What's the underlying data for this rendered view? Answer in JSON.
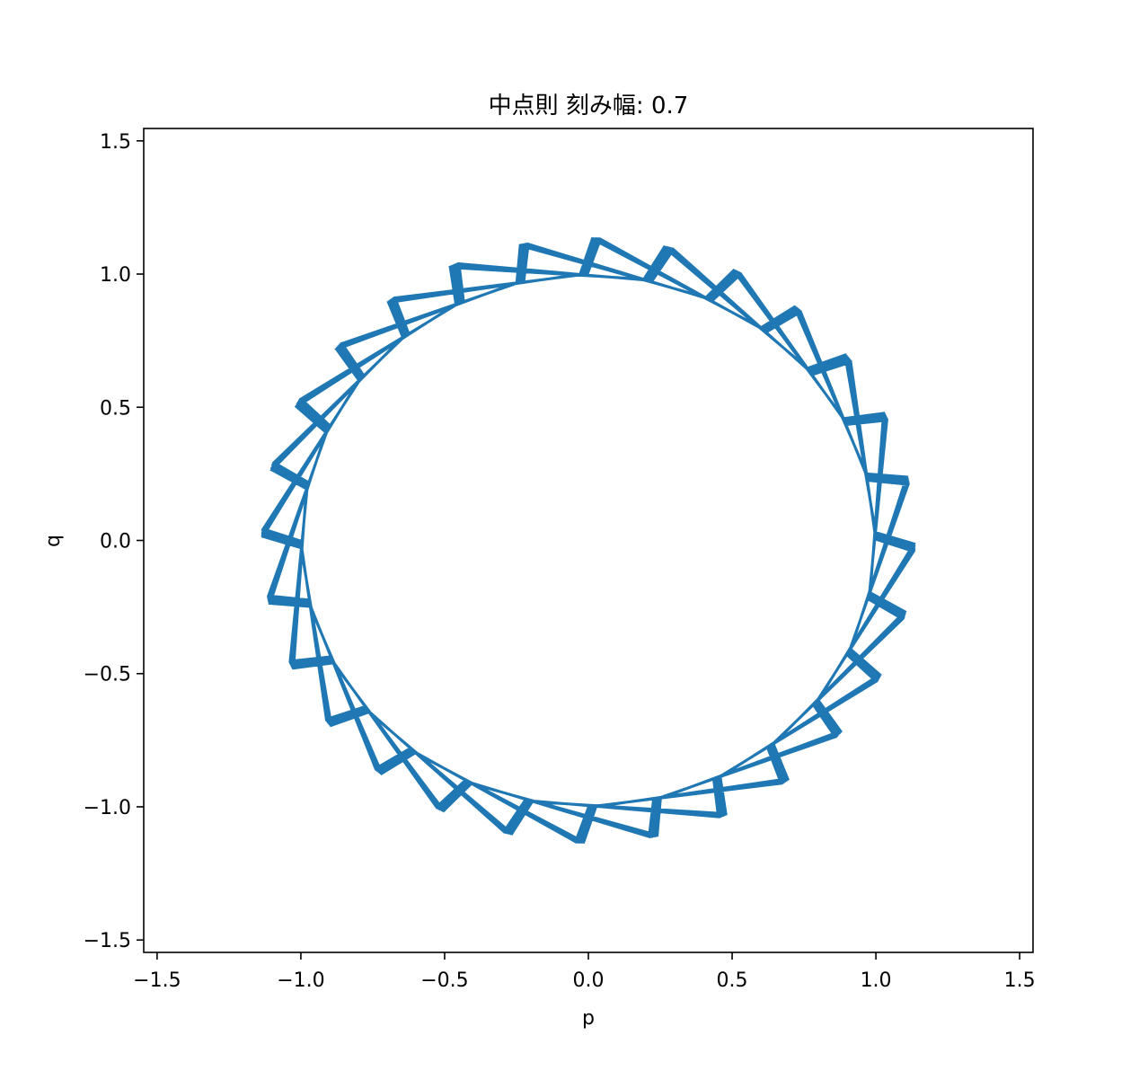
{
  "chart_data": {
    "type": "line",
    "title": "中点則 刻み幅: 0.7",
    "xlabel": "p",
    "ylabel": "q",
    "xlim": [
      -1.5465,
      1.5465
    ],
    "ylim": [
      -1.5465,
      1.5465
    ],
    "xticks": [
      -1.5,
      -1.0,
      -0.5,
      0.0,
      0.5,
      1.0,
      1.5
    ],
    "yticks": [
      -1.5,
      -1.0,
      -0.5,
      0.0,
      0.5,
      1.0,
      1.5
    ],
    "xtick_labels": [
      "−1.5",
      "−1.0",
      "−0.5",
      "0.0",
      "0.5",
      "1.0",
      "1.5"
    ],
    "ytick_labels": [
      "−1.5",
      "−1.0",
      "−0.5",
      "0.0",
      "0.5",
      "1.0",
      "1.5"
    ],
    "grid": false,
    "legend": "none",
    "series": [
      {
        "color": "#1f77b4",
        "method": "midpoint",
        "step": 0.7,
        "n_steps": 200,
        "start": [
          1.0,
          0.0
        ],
        "shape": "zigzag orbit alternating between inner ellipse p²+q²≈1 and outer ellipse with radius up to ≈1.4"
      }
    ]
  }
}
